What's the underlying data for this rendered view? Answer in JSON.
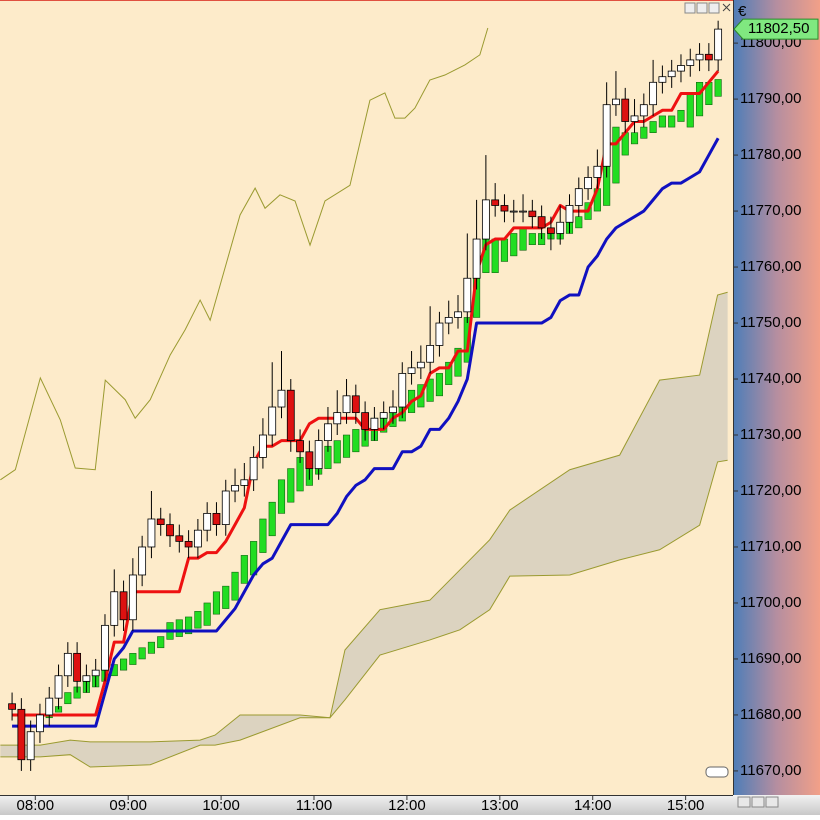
{
  "chart_data": {
    "type": "candlestick",
    "currency": "€",
    "last_price": {
      "value": 11802.5,
      "label": "11802,50"
    },
    "xlim": [
      7.62,
      15.51
    ],
    "ylim": [
      11665.7,
      11807.7
    ],
    "xticks": [
      {
        "value": 8,
        "label": "08:00"
      },
      {
        "value": 9,
        "label": "09:00"
      },
      {
        "value": 10,
        "label": "10:00"
      },
      {
        "value": 11,
        "label": "11:00"
      },
      {
        "value": 12,
        "label": "12:00"
      },
      {
        "value": 13,
        "label": "13:00"
      },
      {
        "value": 14,
        "label": "14:00"
      },
      {
        "value": 15,
        "label": "15:00"
      }
    ],
    "yticks": [
      {
        "value": 11670,
        "label": "11670,00"
      },
      {
        "value": 11680,
        "label": "11680,00"
      },
      {
        "value": 11690,
        "label": "11690,00"
      },
      {
        "value": 11700,
        "label": "11700,00"
      },
      {
        "value": 11710,
        "label": "11710,00"
      },
      {
        "value": 11720,
        "label": "11720,00"
      },
      {
        "value": 11730,
        "label": "11730,00"
      },
      {
        "value": 11740,
        "label": "11740,00"
      },
      {
        "value": 11750,
        "label": "11750,00"
      },
      {
        "value": 11760,
        "label": "11760,00"
      },
      {
        "value": 11770,
        "label": "11770,00"
      },
      {
        "value": 11780,
        "label": "11780,00"
      },
      {
        "value": 11790,
        "label": "11790,00"
      },
      {
        "value": 11800,
        "label": "11800,00"
      }
    ],
    "up_color": "#ffffff",
    "down_color": "#dd1111",
    "x": [
      7.75,
      7.85,
      7.95,
      8.05,
      8.15,
      8.25,
      8.35,
      8.45,
      8.55,
      8.65,
      8.75,
      8.85,
      8.95,
      9.05,
      9.15,
      9.25,
      9.35,
      9.45,
      9.55,
      9.65,
      9.75,
      9.85,
      9.95,
      10.05,
      10.15,
      10.25,
      10.35,
      10.45,
      10.55,
      10.65,
      10.75,
      10.85,
      10.95,
      11.05,
      11.15,
      11.25,
      11.35,
      11.45,
      11.55,
      11.65,
      11.75,
      11.85,
      11.95,
      12.05,
      12.15,
      12.25,
      12.35,
      12.45,
      12.55,
      12.65,
      12.75,
      12.85,
      12.95,
      13.05,
      13.15,
      13.25,
      13.35,
      13.45,
      13.55,
      13.65,
      13.75,
      13.85,
      13.95,
      14.05,
      14.15,
      14.25,
      14.35,
      14.45,
      14.55,
      14.65,
      14.75,
      14.85,
      14.95,
      15.05,
      15.15,
      15.25,
      15.35
    ],
    "open": [
      11682,
      11681,
      11672,
      11677,
      11680,
      11683,
      11687,
      11691,
      11686,
      11687,
      11688,
      11696,
      11702,
      11697,
      11705,
      11710,
      11715,
      11714,
      11712,
      11711,
      11710,
      11713,
      11716,
      11714,
      11720,
      11721,
      11722,
      11726,
      11730,
      11735,
      11738,
      11729,
      11727,
      11724,
      11729,
      11732,
      11734,
      11737,
      11734,
      11731,
      11733,
      11734,
      11735,
      11741,
      11742,
      11743,
      11746,
      11750,
      11751,
      11752,
      11758,
      11765,
      11772,
      11771,
      11770,
      11770,
      11770,
      11769,
      11767,
      11766,
      11768,
      11771,
      11774,
      11776,
      11778,
      11789,
      11790,
      11786,
      11787,
      11789,
      11793,
      11794,
      11795,
      11796,
      11797,
      11798,
      11797
    ],
    "high": [
      11684,
      11683,
      11679,
      11682,
      11685,
      11689,
      11693,
      11693,
      11689,
      11690,
      11698,
      11706,
      11704,
      11708,
      11712,
      11720,
      11717,
      11716,
      11714,
      11713,
      11715,
      11718,
      11718,
      11722,
      11724,
      11725,
      11728,
      11733,
      11743,
      11745,
      11740,
      11731,
      11729,
      11731,
      11735,
      11738,
      11740,
      11739,
      11736,
      11735,
      11736,
      11738,
      11743,
      11745,
      11746,
      11753,
      11752,
      11754,
      11755,
      11766,
      11772,
      11780,
      11775,
      11773,
      11772,
      11773,
      11772,
      11771,
      11769,
      11771,
      11773,
      11776,
      11778,
      11781,
      11793,
      11795,
      11792,
      11790,
      11791,
      11797,
      11796,
      11797,
      11798,
      11799,
      11800,
      11800,
      11804
    ],
    "low": [
      11679,
      11670,
      11670,
      11675,
      11678,
      11681,
      11685,
      11684,
      11684,
      11685,
      11686,
      11694,
      11695,
      11695,
      11703,
      11708,
      11712,
      11710,
      11709,
      11708,
      11708,
      11711,
      11712,
      11712,
      11718,
      11719,
      11720,
      11724,
      11728,
      11733,
      11727,
      11725,
      11722,
      11722,
      11727,
      11730,
      11732,
      11732,
      11729,
      11729,
      11731,
      11732,
      11733,
      11739,
      11740,
      11741,
      11744,
      11748,
      11749,
      11750,
      11756,
      11763,
      11769,
      11768,
      11768,
      11768,
      11767,
      11765,
      11763,
      11764,
      11766,
      11769,
      11772,
      11774,
      11776,
      11787,
      11784,
      11784,
      11785,
      11787,
      11791,
      11792,
      11793,
      11794,
      11795,
      11795,
      11795
    ],
    "close": [
      11681,
      11672,
      11677,
      11680,
      11683,
      11687,
      11691,
      11686,
      11687,
      11688,
      11696,
      11702,
      11697,
      11705,
      11710,
      11715,
      11714,
      11712,
      11711,
      11710,
      11713,
      11716,
      11714,
      11720,
      11721,
      11722,
      11726,
      11730,
      11735,
      11738,
      11729,
      11727,
      11724,
      11729,
      11732,
      11734,
      11737,
      11734,
      11731,
      11733,
      11734,
      11735,
      11741,
      11742,
      11743,
      11746,
      11750,
      11751,
      11752,
      11758,
      11765,
      11772,
      11771,
      11770,
      11770,
      11770,
      11769,
      11767,
      11766,
      11768,
      11771,
      11774,
      11776,
      11778,
      11789,
      11790,
      11786,
      11787,
      11789,
      11793,
      11794,
      11795,
      11796,
      11797,
      11798,
      11797,
      11802.5
    ],
    "overlays": [
      {
        "color": "#1010c0",
        "values": [
          11678,
          11678,
          11678,
          11678,
          11678,
          11678,
          11678,
          11678,
          11678,
          11678,
          11684,
          11690,
          11692,
          11695,
          11695,
          11695,
          11695,
          11695,
          11695,
          11695,
          11695,
          11695,
          11695,
          11697,
          11699,
          11702,
          11705,
          11707,
          11708,
          11711,
          11714,
          11714,
          11714,
          11714,
          11714,
          11716,
          11719,
          11721,
          11722,
          11724,
          11724,
          11724,
          11727,
          11727,
          11728,
          11731,
          11731,
          11733,
          11736,
          11740,
          11750,
          11750,
          11750,
          11750,
          11750,
          11750,
          11750,
          11750,
          11751,
          11754,
          11755,
          11755,
          11760,
          11762,
          11765,
          11767,
          11768,
          11769,
          11770,
          11772,
          11774,
          11775,
          11775,
          11776,
          11777,
          11780,
          11783
        ]
      },
      {
        "color": "#ee1111",
        "values": [
          11680,
          11680,
          11680,
          11680,
          11680,
          11680,
          11680,
          11680,
          11680,
          11680,
          11686,
          11693,
          11693,
          11702,
          11702,
          11702,
          11702,
          11702,
          11702,
          11708,
          11708,
          11709,
          11709,
          11711,
          11714,
          11717,
          11725,
          11728,
          11728,
          11729,
          11729,
          11729,
          11732,
          11733,
          11733,
          11733,
          11733,
          11733,
          11731,
          11731,
          11731,
          11733,
          11734,
          11736,
          11737,
          11741,
          11742,
          11742,
          11745,
          11745,
          11759,
          11764,
          11765,
          11765,
          11767,
          11767,
          11767,
          11767,
          11768,
          11771,
          11770,
          11770,
          11770,
          11774,
          11782,
          11782,
          11784,
          11786,
          11786,
          11787,
          11788,
          11788,
          11791,
          11791,
          11791,
          11793,
          11795
        ]
      }
    ],
    "bands": {
      "color": "#22dd22",
      "bottom": [
        null,
        null,
        null,
        11678.5,
        11679.5,
        11680.5,
        11682,
        11683,
        11684,
        11685,
        11686,
        11687,
        11688,
        11689,
        11690,
        11691,
        11692,
        11693.5,
        11694,
        11694.5,
        11695.5,
        11696,
        11698,
        11699,
        11700.5,
        11703.5,
        11705,
        11709,
        11712,
        11716,
        11718,
        11720,
        11721,
        11723,
        11724,
        11725,
        11726,
        11727,
        11728,
        11729,
        11730.5,
        11731.5,
        11732.5,
        11734,
        11735,
        11736,
        11737,
        11739,
        11740.5,
        11743,
        11751,
        11759,
        11759,
        11761,
        11762,
        11763,
        11764,
        11764,
        11765,
        11765,
        11766,
        11767,
        11768.5,
        11770,
        11771,
        11775,
        11780,
        11782,
        11783,
        11784,
        11785,
        11785,
        11786,
        11785,
        11787,
        11789,
        11790.5
      ],
      "top": [
        null,
        null,
        null,
        11679.5,
        11680.5,
        11681.5,
        11684,
        11685,
        11686,
        11687,
        11688,
        11689,
        11690,
        11691,
        11692,
        11693,
        11694,
        11696.5,
        11697,
        11697.5,
        11698.5,
        11700,
        11702,
        11703,
        11705.5,
        11708.5,
        11711,
        11715,
        11718,
        11722,
        11724,
        11726,
        11727,
        11727,
        11728,
        11729,
        11730,
        11731,
        11732,
        11733,
        11733.5,
        11734.5,
        11735.5,
        11738,
        11739,
        11740,
        11741,
        11743,
        11745.5,
        11751,
        11763,
        11765,
        11765,
        11765,
        11766,
        11767,
        11766,
        11766,
        11767,
        11767,
        11768,
        11769,
        11771.5,
        11774,
        11781,
        11785,
        11784,
        11784,
        11785,
        11786,
        11787,
        11787,
        11788,
        11791,
        11793,
        11793,
        11793.5
      ]
    },
    "cloud": {
      "line_color": "#9a9a30",
      "fill": "#dcd3c0",
      "x": [
        7.624,
        8.054,
        8.376,
        8.591,
        9.237,
        9.774,
        9.935,
        10.204,
        10.849,
        11.172,
        11.333,
        11.71,
        12.247,
        12.57,
        12.892,
        13.108,
        13.753,
        14.29,
        14.72,
        15.151,
        15.344,
        15.452
      ],
      "span_a": [
        11674.6,
        11674.6,
        11675.5,
        11675.2,
        11675.2,
        11675.5,
        11676.4,
        11680,
        11680,
        11679.5,
        11691.6,
        11698.8,
        11700.5,
        11705.9,
        11711.3,
        11716.6,
        11723.8,
        11726.4,
        11739.8,
        11740.7,
        11755,
        11755.5
      ],
      "span_b": [
        11672.5,
        11672.5,
        11672.9,
        11670.7,
        11671.1,
        11674.6,
        11674.6,
        11675.5,
        11679.5,
        11679.5,
        11682.7,
        11690.7,
        11693.4,
        11695.2,
        11698.8,
        11704.8,
        11705,
        11707.7,
        11709.5,
        11713.9,
        11725.2,
        11725.5
      ]
    },
    "lagging": {
      "color": "#9a9a30",
      "x": [
        7.624,
        7.785,
        8.054,
        8.269,
        8.43,
        8.645,
        8.753,
        8.968,
        9.075,
        9.237,
        9.452,
        9.613,
        9.774,
        9.882,
        10.204,
        10.366,
        10.473,
        10.634,
        10.796,
        10.957,
        11.118,
        11.387,
        11.602,
        11.763,
        11.871,
        11.978,
        12.086,
        12.247,
        12.409,
        12.624,
        12.785,
        12.871
      ],
      "values": [
        11722,
        11723.8,
        11740.2,
        11732.7,
        11724.1,
        11723.8,
        11739.8,
        11736.3,
        11733,
        11736.3,
        11744.3,
        11748.8,
        11754.1,
        11750.5,
        11769.3,
        11774.1,
        11770.5,
        11772.9,
        11771.8,
        11763.9,
        11771.8,
        11774.6,
        11789.8,
        11791.1,
        11786.6,
        11786.6,
        11788.4,
        11793.4,
        11794.3,
        11796.1,
        11797.9,
        11802.7
      ]
    }
  }
}
